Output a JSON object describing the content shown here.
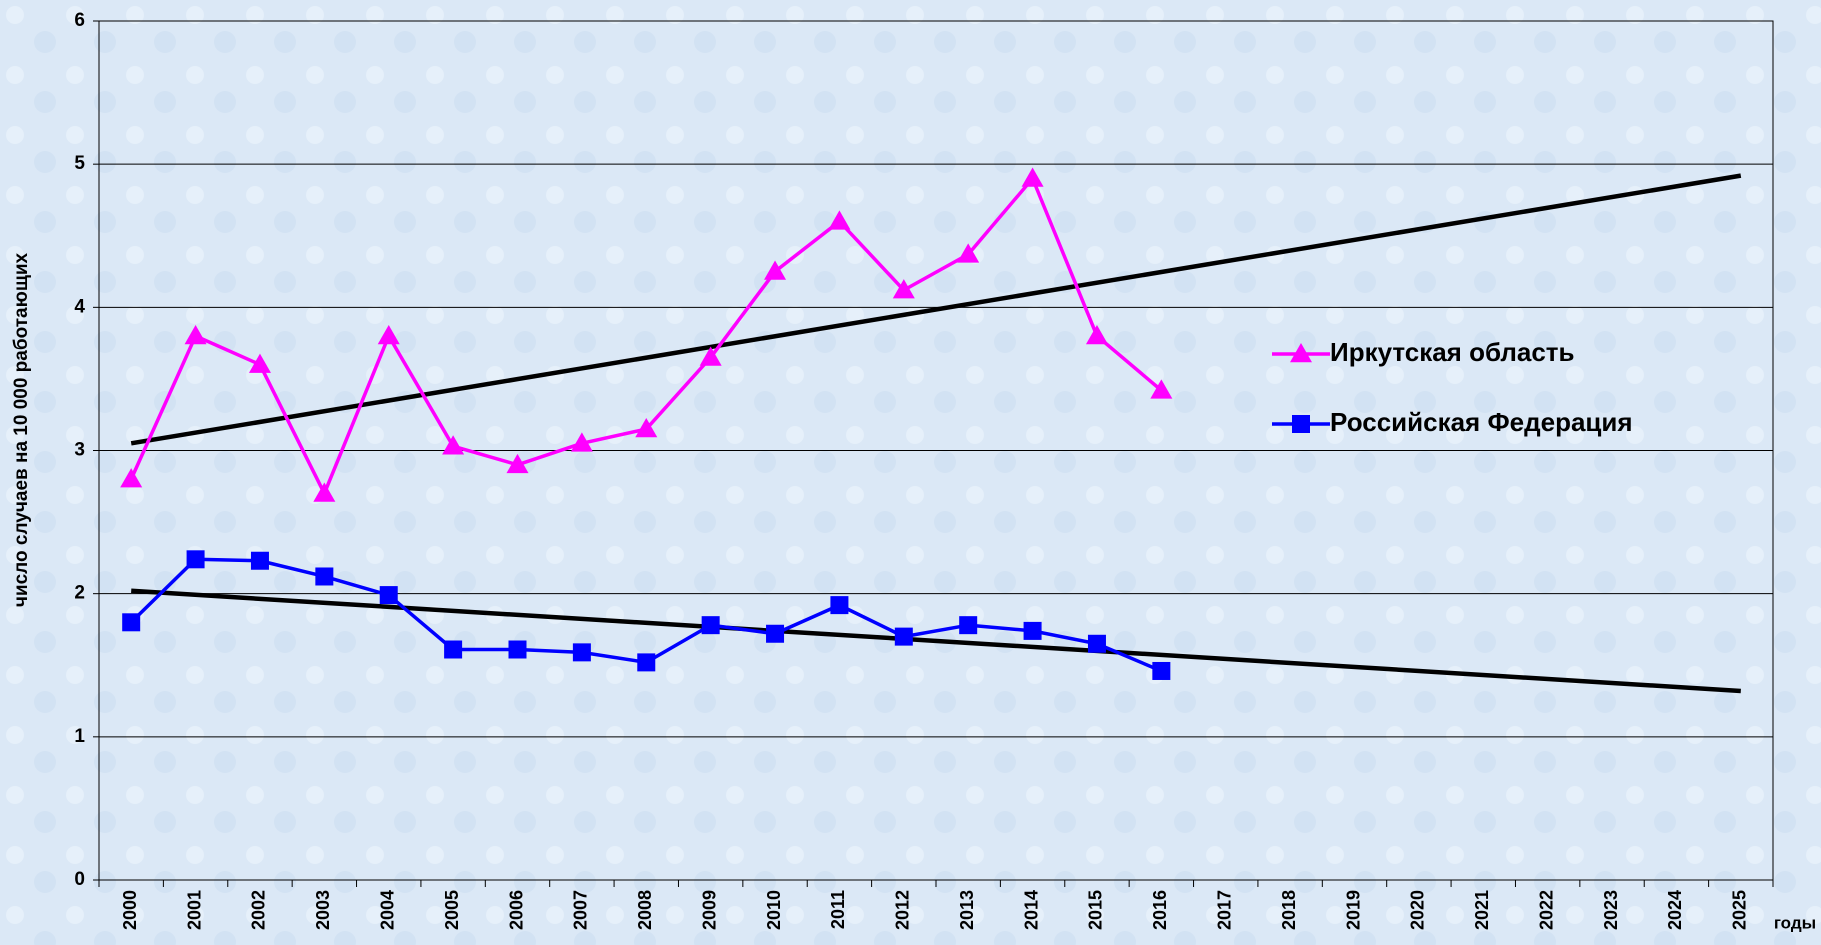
{
  "chart_data": {
    "type": "line",
    "y_label": "число случаев на 10 000 работающих",
    "x_label": "годы",
    "categories": [
      "2000",
      "2001",
      "2002",
      "2003",
      "2004",
      "2005",
      "2006",
      "2007",
      "2008",
      "2009",
      "2010",
      "2011",
      "2012",
      "2013",
      "2014",
      "2015",
      "2016",
      "2017",
      "2018",
      "2019",
      "2020",
      "2021",
      "2022",
      "2023",
      "2024",
      "2025"
    ],
    "series": [
      {
        "name": "Иркутская область",
        "color": "#ff00ff",
        "marker": "triangle",
        "values": [
          2.8,
          3.8,
          3.6,
          2.7,
          3.8,
          3.03,
          2.9,
          3.05,
          3.15,
          3.65,
          4.25,
          4.6,
          4.12,
          4.37,
          4.9,
          3.8,
          3.42,
          null,
          null,
          null,
          null,
          null,
          null,
          null,
          null,
          null
        ]
      },
      {
        "name": "Российская Федерация",
        "color": "#0000ff",
        "marker": "square",
        "values": [
          1.8,
          2.24,
          2.23,
          2.12,
          1.99,
          1.61,
          1.61,
          1.59,
          1.52,
          1.78,
          1.72,
          1.92,
          1.7,
          1.78,
          1.74,
          1.65,
          1.46,
          null,
          null,
          null,
          null,
          null,
          null,
          null,
          null,
          null
        ]
      }
    ],
    "trendlines": [
      {
        "color": "#000000",
        "start": 3.05,
        "end": 4.92
      },
      {
        "color": "#000000",
        "start": 2.02,
        "end": 1.32
      }
    ],
    "ylim": [
      0,
      6
    ],
    "yticks": [
      0,
      1,
      2,
      3,
      4,
      5,
      6
    ],
    "grid": true,
    "legend": "right"
  }
}
